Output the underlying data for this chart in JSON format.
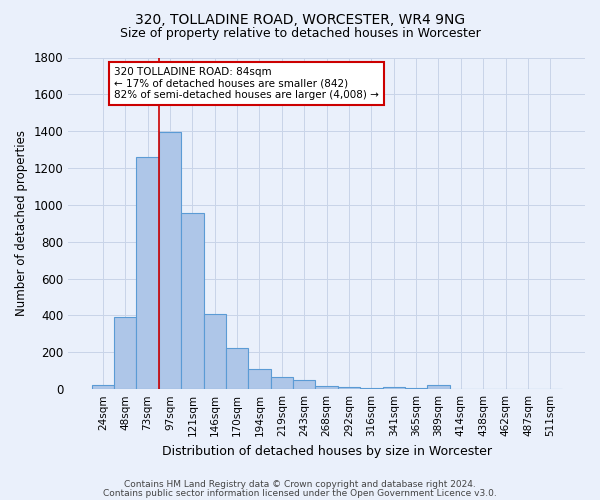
{
  "title": "320, TOLLADINE ROAD, WORCESTER, WR4 9NG",
  "subtitle": "Size of property relative to detached houses in Worcester",
  "xlabel": "Distribution of detached houses by size in Worcester",
  "ylabel": "Number of detached properties",
  "footnote1": "Contains HM Land Registry data © Crown copyright and database right 2024.",
  "footnote2": "Contains public sector information licensed under the Open Government Licence v3.0.",
  "bin_labels": [
    "24sqm",
    "48sqm",
    "73sqm",
    "97sqm",
    "121sqm",
    "146sqm",
    "170sqm",
    "194sqm",
    "219sqm",
    "243sqm",
    "268sqm",
    "292sqm",
    "316sqm",
    "341sqm",
    "365sqm",
    "389sqm",
    "414sqm",
    "438sqm",
    "462sqm",
    "487sqm",
    "511sqm"
  ],
  "bar_values": [
    25,
    390,
    1260,
    1395,
    955,
    410,
    225,
    110,
    65,
    50,
    15,
    10,
    5,
    12,
    5,
    20,
    2,
    2,
    2,
    2,
    2
  ],
  "bar_color": "#aec6e8",
  "bar_edge_color": "#5b9bd5",
  "bg_color": "#eaf0fb",
  "grid_color": "#c8d4e8",
  "vline_color": "#cc0000",
  "annotation_text": "320 TOLLADINE ROAD: 84sqm\n← 17% of detached houses are smaller (842)\n82% of semi-detached houses are larger (4,008) →",
  "annotation_box_color": "#cc0000",
  "ylim": [
    0,
    1800
  ],
  "yticks": [
    0,
    200,
    400,
    600,
    800,
    1000,
    1200,
    1400,
    1600,
    1800
  ],
  "title_fontsize": 10,
  "subtitle_fontsize": 9
}
